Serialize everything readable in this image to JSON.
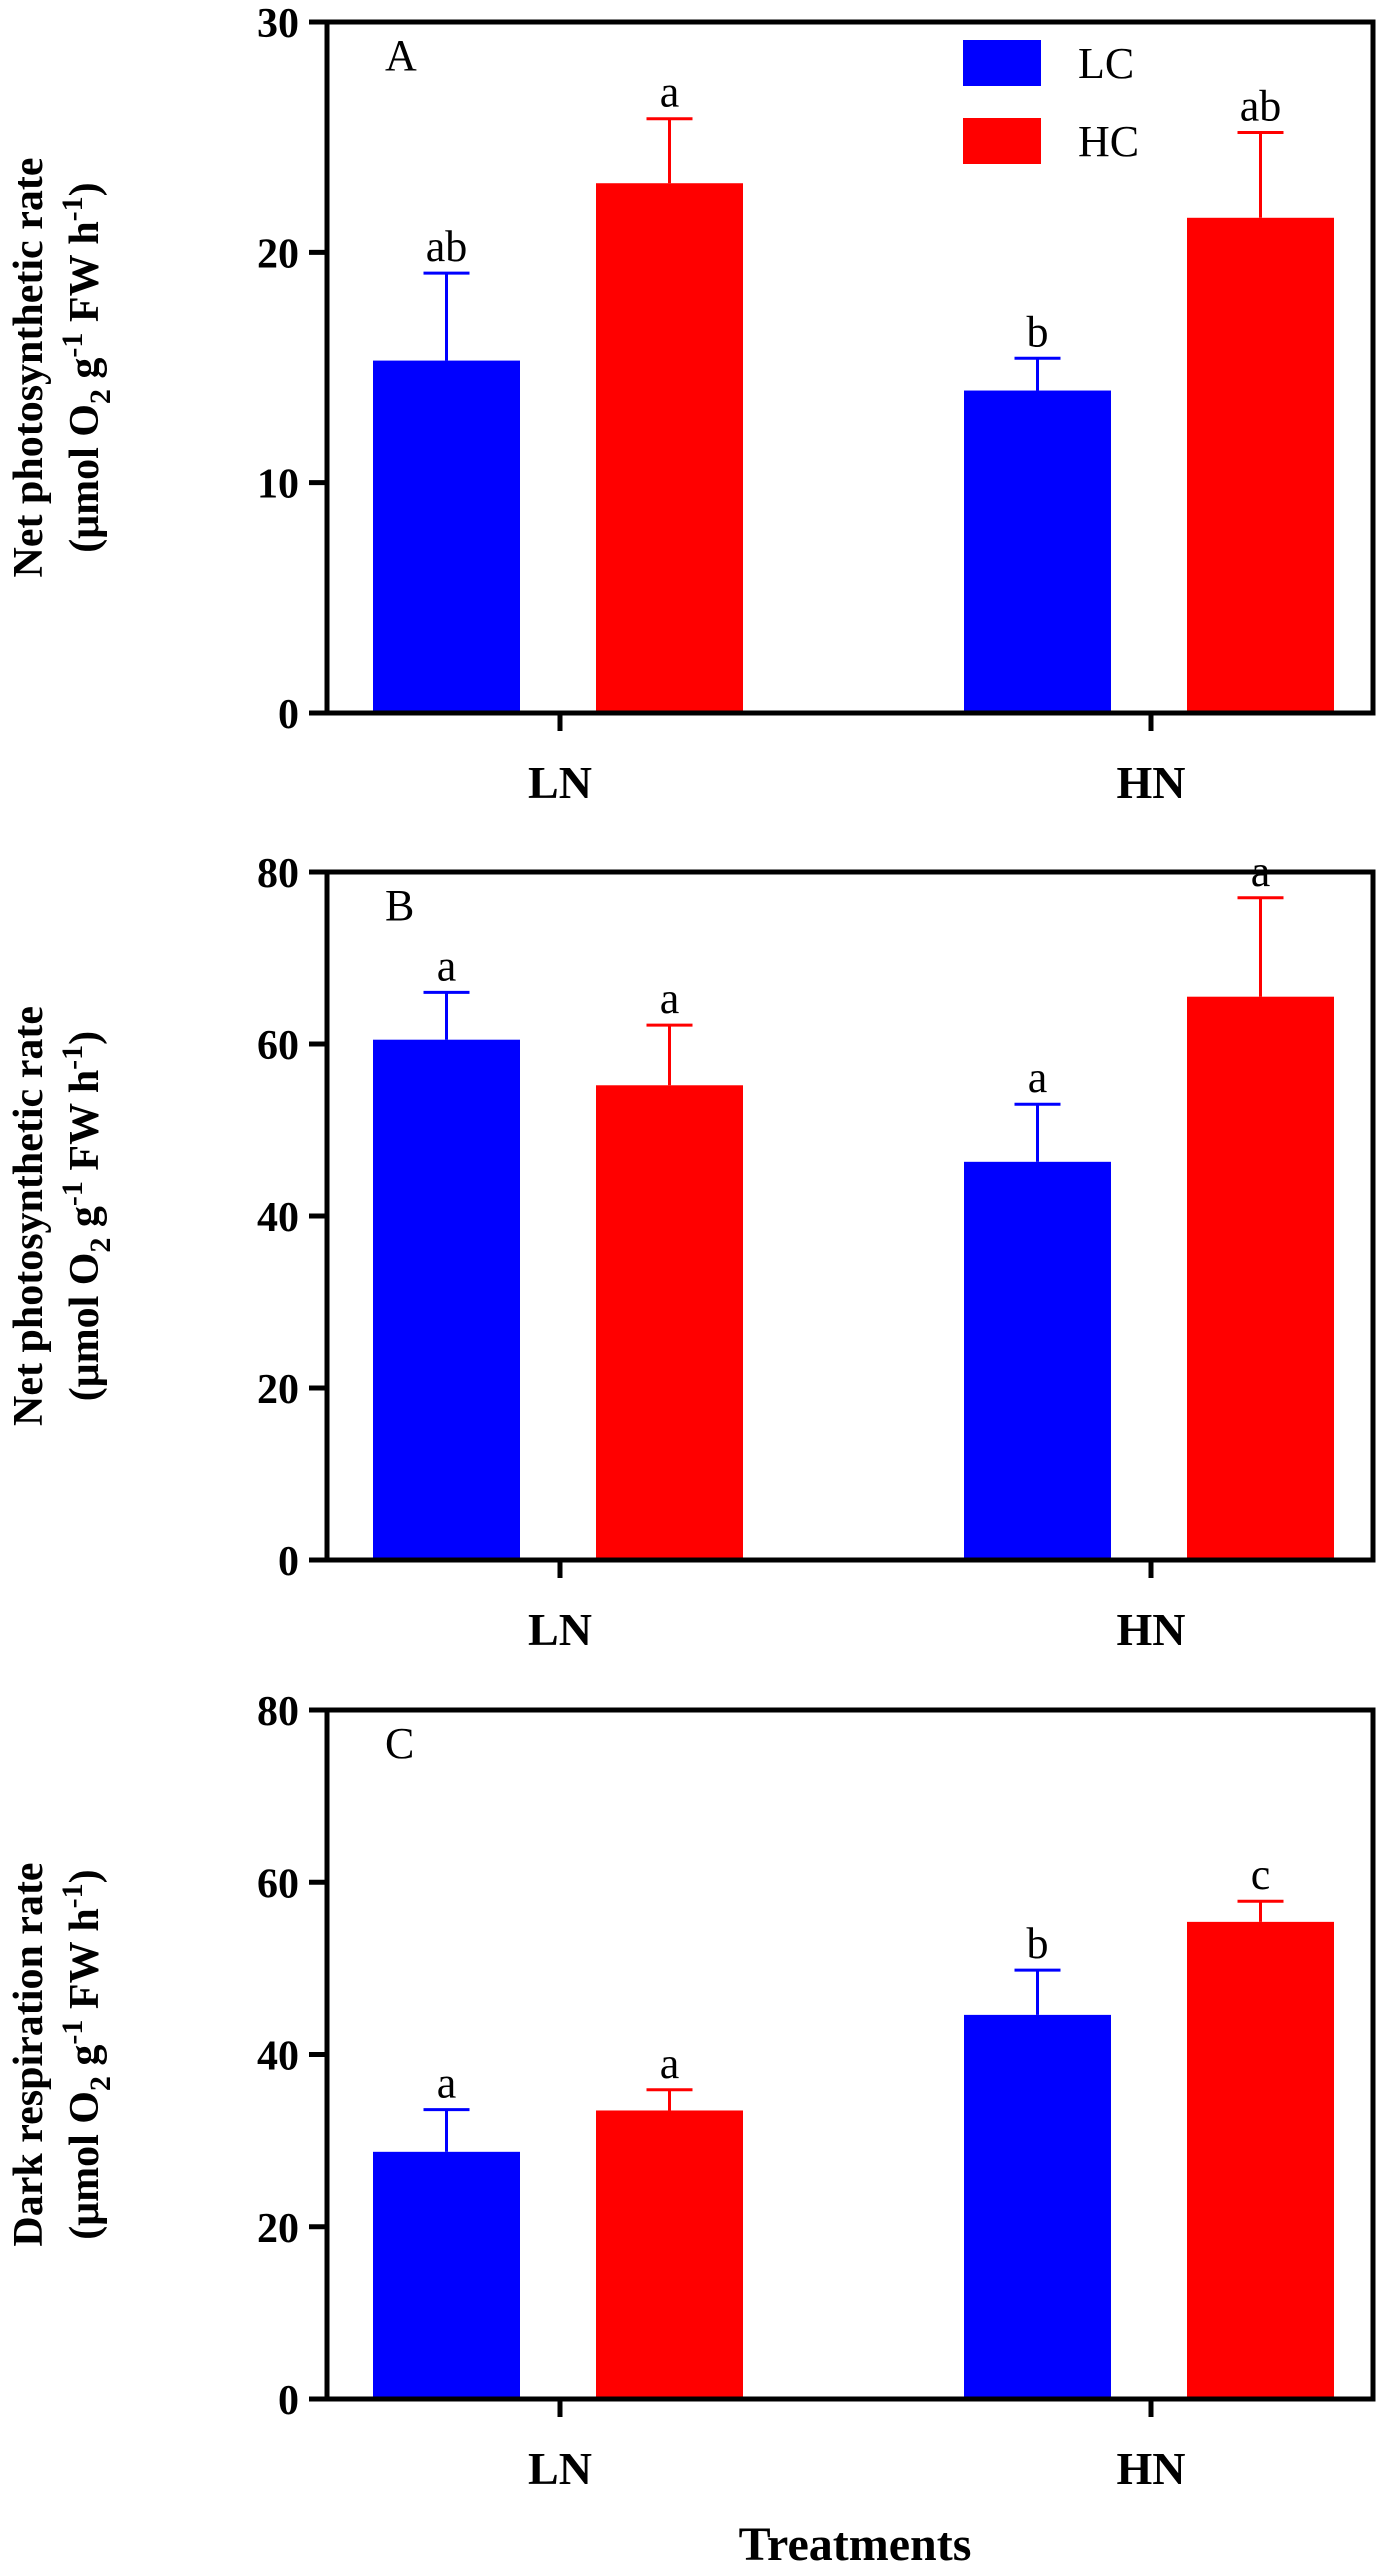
{
  "chart_data": [
    {
      "type": "bar",
      "panel_label": "A",
      "categories": [
        "LN",
        "HN"
      ],
      "series": [
        {
          "name": "LC",
          "color": "#0000ff",
          "values": [
            15.3,
            14.0
          ],
          "errors": [
            3.8,
            1.4
          ],
          "sig": [
            "ab",
            "b"
          ]
        },
        {
          "name": "HC",
          "color": "#ff0000",
          "values": [
            23.0,
            21.5
          ],
          "errors": [
            2.8,
            3.7
          ],
          "sig": [
            "a",
            "ab"
          ]
        }
      ],
      "ylabel_line1": "Net photosynthetic rate",
      "ylabel_line2": {
        "a": "(μmol O",
        "b": "2",
        "c": " g",
        "d": "-1",
        "e": " FW h",
        "f": "-1",
        "g": ")"
      },
      "ylim": [
        0,
        30
      ],
      "yticks": [
        "0",
        "10",
        "20",
        "30"
      ],
      "legend": true
    },
    {
      "type": "bar",
      "panel_label": "B",
      "categories": [
        "LN",
        "HN"
      ],
      "series": [
        {
          "name": "LC",
          "color": "#0000ff",
          "values": [
            60.5,
            46.3
          ],
          "errors": [
            5.5,
            6.7
          ],
          "sig": [
            "a",
            "a"
          ]
        },
        {
          "name": "HC",
          "color": "#ff0000",
          "values": [
            55.2,
            65.5
          ],
          "errors": [
            7.0,
            11.5
          ],
          "sig": [
            "a",
            "a"
          ]
        }
      ],
      "ylabel_line1": "Net photosynthetic rate",
      "ylabel_line2": {
        "a": "(μmol O",
        "b": "2",
        "c": " g",
        "d": "-1",
        "e": " FW h",
        "f": "-1",
        "g": ")"
      },
      "ylim": [
        0,
        80
      ],
      "yticks": [
        "0",
        "20",
        "40",
        "60",
        "80"
      ],
      "legend": false
    },
    {
      "type": "bar",
      "panel_label": "C",
      "categories": [
        "LN",
        "HN"
      ],
      "series": [
        {
          "name": "LC",
          "color": "#0000ff",
          "values": [
            28.7,
            44.6
          ],
          "errors": [
            4.9,
            5.2
          ],
          "sig": [
            "a",
            "b"
          ]
        },
        {
          "name": "HC",
          "color": "#ff0000",
          "values": [
            33.5,
            55.4
          ],
          "errors": [
            2.4,
            2.4
          ],
          "sig": [
            "a",
            "c"
          ]
        }
      ],
      "ylabel_line1": "Dark respiration rate",
      "ylabel_line2": {
        "a": "(μmol O",
        "b": "2",
        "c": " g",
        "d": "-1",
        "e": " FW h",
        "f": "-1",
        "g": ")"
      },
      "ylim": [
        0,
        80
      ],
      "yticks": [
        "0",
        "20",
        "40",
        "60",
        "80"
      ],
      "legend": false
    }
  ],
  "xtitle": "Treatments"
}
